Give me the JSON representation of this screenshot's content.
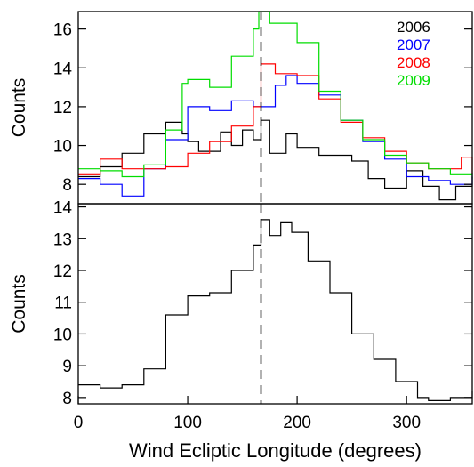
{
  "chart_data": [
    {
      "type": "line",
      "ylabel": "Counts",
      "xlim": [
        0,
        360
      ],
      "ylim": [
        7,
        16.9
      ],
      "yticks": [
        8,
        10,
        12,
        14,
        16
      ],
      "ref_line_x": 167,
      "legend_placement": "top-right",
      "series": [
        {
          "name": "2006",
          "color": "#000000",
          "x": [
            0,
            20,
            40,
            60,
            80,
            95,
            100,
            110,
            130,
            140,
            150,
            160,
            167,
            175,
            190,
            200,
            220,
            250,
            265,
            280,
            300,
            315,
            330,
            345,
            360
          ],
          "values": [
            8.4,
            8.9,
            9.6,
            10.6,
            11.2,
            10.6,
            10.2,
            9.7,
            10.7,
            10.0,
            10.8,
            10.3,
            11.3,
            9.6,
            10.6,
            9.9,
            9.5,
            9.2,
            8.3,
            7.8,
            8.7,
            7.9,
            7.2,
            7.9,
            8.4
          ]
        },
        {
          "name": "2007",
          "color": "#0000ff",
          "x": [
            0,
            20,
            40,
            60,
            80,
            100,
            120,
            140,
            160,
            180,
            190,
            200,
            220,
            240,
            260,
            280,
            300,
            320,
            340,
            360
          ],
          "values": [
            8.3,
            8.0,
            7.4,
            8.8,
            10.3,
            12.0,
            11.8,
            12.3,
            12.0,
            13.1,
            13.6,
            13.2,
            12.6,
            11.3,
            10.2,
            9.3,
            8.4,
            8.2,
            8.0,
            8.6
          ]
        },
        {
          "name": "2008",
          "color": "#ff0000",
          "x": [
            0,
            20,
            40,
            60,
            80,
            100,
            120,
            140,
            160,
            167,
            180,
            200,
            220,
            240,
            260,
            280,
            300,
            320,
            340,
            350,
            360
          ],
          "values": [
            8.5,
            9.3,
            8.8,
            8.8,
            8.9,
            9.6,
            10.2,
            11.0,
            12.0,
            14.2,
            13.7,
            13.6,
            12.4,
            11.2,
            10.4,
            9.7,
            9.1,
            8.8,
            8.8,
            9.4,
            8.5
          ]
        },
        {
          "name": "2009",
          "color": "#00dd00",
          "x": [
            0,
            20,
            40,
            60,
            80,
            95,
            100,
            120,
            140,
            160,
            165,
            175,
            190,
            200,
            220,
            240,
            260,
            280,
            300,
            320,
            340,
            360
          ],
          "values": [
            8.8,
            8.7,
            8.4,
            9.0,
            10.8,
            13.2,
            13.4,
            13.0,
            14.6,
            16.0,
            16.9,
            16.3,
            16.3,
            15.3,
            12.8,
            11.3,
            10.3,
            9.5,
            9.1,
            8.8,
            8.5,
            8.3
          ]
        }
      ]
    },
    {
      "type": "line",
      "xlabel": "Wind Ecliptic Longitude (degrees)",
      "ylabel": "Counts",
      "xlim": [
        0,
        360
      ],
      "ylim": [
        7.8,
        14.1
      ],
      "yticks": [
        8,
        9,
        10,
        11,
        12,
        13,
        14
      ],
      "xticks": [
        0,
        100,
        200,
        300
      ],
      "ref_line_x": 167,
      "series": [
        {
          "color": "#000000",
          "x": [
            0,
            20,
            40,
            60,
            80,
            100,
            120,
            140,
            160,
            167,
            175,
            185,
            195,
            210,
            230,
            250,
            270,
            290,
            310,
            320,
            340,
            360
          ],
          "values": [
            8.4,
            8.3,
            8.4,
            8.9,
            10.6,
            11.2,
            11.3,
            12.0,
            12.8,
            13.6,
            13.1,
            13.5,
            13.2,
            12.3,
            11.3,
            10.0,
            9.2,
            8.5,
            8.0,
            7.9,
            8.0,
            8.2
          ]
        }
      ]
    }
  ]
}
